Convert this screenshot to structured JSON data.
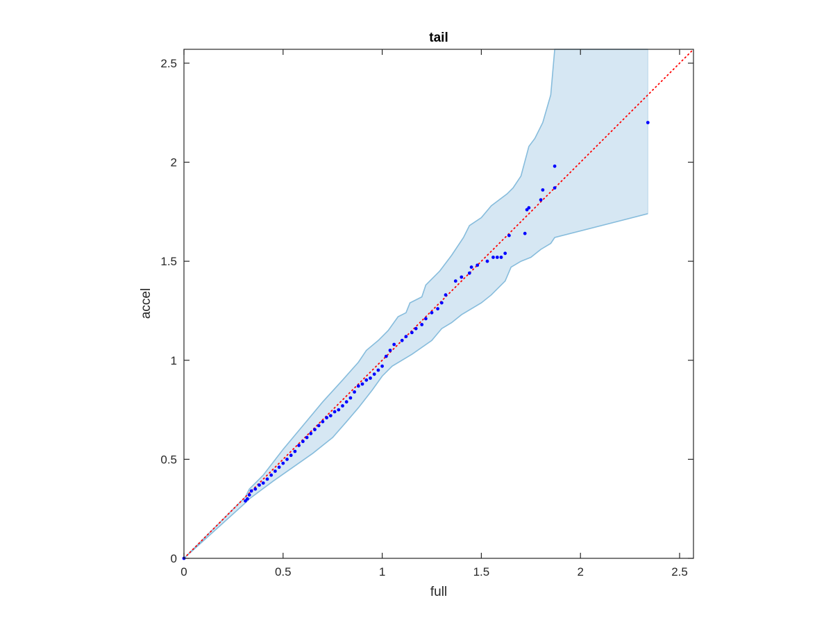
{
  "chart_data": {
    "type": "scatter",
    "title": "tail",
    "xlabel": "full",
    "ylabel": "accel",
    "xlim": [
      0,
      2.57
    ],
    "ylim": [
      0,
      2.57
    ],
    "xticks": [
      "0",
      "0.5",
      "1",
      "1.5",
      "2",
      "2.5"
    ],
    "yticks": [
      "0",
      "0.5",
      "1",
      "1.5",
      "2",
      "2.5"
    ],
    "grid": false,
    "colors": {
      "band_fill": "#d6e7f3",
      "band_edge": "#86bcdc",
      "points": "#0000ff",
      "reference": "#ff0000",
      "axes": "#262626"
    },
    "reference_line": {
      "style": "dotted",
      "from": [
        0,
        0
      ],
      "to": [
        2.57,
        2.57
      ]
    },
    "band_upper": [
      [
        0,
        0
      ],
      [
        0.31,
        0.31
      ],
      [
        0.33,
        0.35
      ],
      [
        0.4,
        0.42
      ],
      [
        0.5,
        0.55
      ],
      [
        0.6,
        0.67
      ],
      [
        0.7,
        0.79
      ],
      [
        0.8,
        0.9
      ],
      [
        0.88,
        0.99
      ],
      [
        0.92,
        1.05
      ],
      [
        0.98,
        1.1
      ],
      [
        1.03,
        1.15
      ],
      [
        1.08,
        1.22
      ],
      [
        1.12,
        1.24
      ],
      [
        1.14,
        1.29
      ],
      [
        1.2,
        1.32
      ],
      [
        1.22,
        1.38
      ],
      [
        1.29,
        1.45
      ],
      [
        1.35,
        1.53
      ],
      [
        1.41,
        1.62
      ],
      [
        1.44,
        1.68
      ],
      [
        1.5,
        1.72
      ],
      [
        1.55,
        1.78
      ],
      [
        1.63,
        1.84
      ],
      [
        1.66,
        1.87
      ],
      [
        1.7,
        1.93
      ],
      [
        1.74,
        2.08
      ],
      [
        1.77,
        2.12
      ],
      [
        1.81,
        2.2
      ],
      [
        1.85,
        2.34
      ],
      [
        1.87,
        2.57
      ],
      [
        2.34,
        2.57
      ]
    ],
    "band_lower": [
      [
        0,
        0
      ],
      [
        0.31,
        0.28
      ],
      [
        0.33,
        0.3
      ],
      [
        0.45,
        0.39
      ],
      [
        0.55,
        0.46
      ],
      [
        0.65,
        0.53
      ],
      [
        0.75,
        0.61
      ],
      [
        0.82,
        0.69
      ],
      [
        0.88,
        0.76
      ],
      [
        0.95,
        0.85
      ],
      [
        1.0,
        0.92
      ],
      [
        1.05,
        0.97
      ],
      [
        1.15,
        1.03
      ],
      [
        1.25,
        1.1
      ],
      [
        1.3,
        1.16
      ],
      [
        1.35,
        1.19
      ],
      [
        1.4,
        1.23
      ],
      [
        1.5,
        1.29
      ],
      [
        1.55,
        1.33
      ],
      [
        1.62,
        1.4
      ],
      [
        1.65,
        1.47
      ],
      [
        1.7,
        1.5
      ],
      [
        1.75,
        1.52
      ],
      [
        1.8,
        1.56
      ],
      [
        1.85,
        1.59
      ],
      [
        1.87,
        1.62
      ],
      [
        2.34,
        1.74
      ]
    ],
    "points": [
      [
        0,
        0
      ],
      [
        0.31,
        0.29
      ],
      [
        0.32,
        0.3
      ],
      [
        0.33,
        0.32
      ],
      [
        0.34,
        0.34
      ],
      [
        0.36,
        0.35
      ],
      [
        0.38,
        0.37
      ],
      [
        0.4,
        0.38
      ],
      [
        0.42,
        0.4
      ],
      [
        0.44,
        0.42
      ],
      [
        0.46,
        0.44
      ],
      [
        0.48,
        0.46
      ],
      [
        0.5,
        0.48
      ],
      [
        0.52,
        0.5
      ],
      [
        0.54,
        0.52
      ],
      [
        0.56,
        0.54
      ],
      [
        0.58,
        0.57
      ],
      [
        0.6,
        0.59
      ],
      [
        0.62,
        0.61
      ],
      [
        0.64,
        0.63
      ],
      [
        0.66,
        0.65
      ],
      [
        0.68,
        0.67
      ],
      [
        0.7,
        0.69
      ],
      [
        0.72,
        0.71
      ],
      [
        0.74,
        0.72
      ],
      [
        0.76,
        0.74
      ],
      [
        0.78,
        0.75
      ],
      [
        0.8,
        0.77
      ],
      [
        0.82,
        0.79
      ],
      [
        0.84,
        0.81
      ],
      [
        0.86,
        0.84
      ],
      [
        0.88,
        0.87
      ],
      [
        0.9,
        0.88
      ],
      [
        0.92,
        0.9
      ],
      [
        0.94,
        0.91
      ],
      [
        0.96,
        0.93
      ],
      [
        0.98,
        0.95
      ],
      [
        1.0,
        0.97
      ],
      [
        1.02,
        1.02
      ],
      [
        1.04,
        1.05
      ],
      [
        1.06,
        1.08
      ],
      [
        1.1,
        1.1
      ],
      [
        1.12,
        1.12
      ],
      [
        1.15,
        1.14
      ],
      [
        1.17,
        1.16
      ],
      [
        1.2,
        1.18
      ],
      [
        1.22,
        1.21
      ],
      [
        1.25,
        1.24
      ],
      [
        1.28,
        1.26
      ],
      [
        1.3,
        1.29
      ],
      [
        1.32,
        1.33
      ],
      [
        1.37,
        1.4
      ],
      [
        1.4,
        1.42
      ],
      [
        1.44,
        1.44
      ],
      [
        1.45,
        1.47
      ],
      [
        1.48,
        1.48
      ],
      [
        1.53,
        1.5
      ],
      [
        1.56,
        1.52
      ],
      [
        1.58,
        1.52
      ],
      [
        1.6,
        1.52
      ],
      [
        1.62,
        1.54
      ],
      [
        1.64,
        1.63
      ],
      [
        1.72,
        1.64
      ],
      [
        1.73,
        1.76
      ],
      [
        1.74,
        1.77
      ],
      [
        1.8,
        1.81
      ],
      [
        1.81,
        1.86
      ],
      [
        1.87,
        1.87
      ],
      [
        1.87,
        1.98
      ],
      [
        2.34,
        2.2
      ]
    ]
  }
}
